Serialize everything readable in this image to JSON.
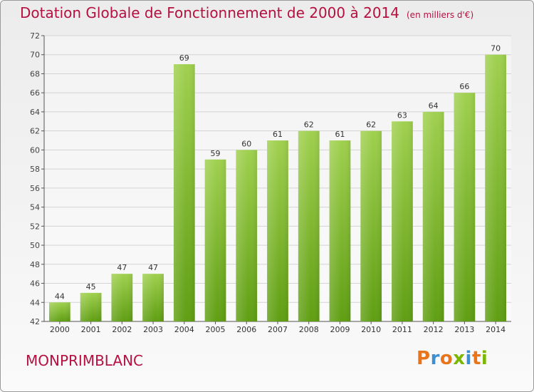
{
  "chart_data": {
    "type": "bar",
    "title": "Dotation Globale de Fonctionnement de 2000 à 2014",
    "subtitle": "(en milliers d'€)",
    "categories": [
      "2000",
      "2001",
      "2002",
      "2003",
      "2004",
      "2005",
      "2006",
      "2007",
      "2008",
      "2009",
      "2010",
      "2011",
      "2012",
      "2013",
      "2014"
    ],
    "values": [
      44,
      45,
      47,
      47,
      69,
      59,
      60,
      61,
      62,
      61,
      62,
      63,
      64,
      66,
      70
    ],
    "ylim": [
      42,
      72
    ],
    "yticks": [
      42,
      44,
      46,
      48,
      50,
      52,
      54,
      56,
      58,
      60,
      62,
      64,
      66,
      68,
      70,
      72
    ],
    "grid": true,
    "bar_color_top": "#9fd04e",
    "bar_color_bottom": "#5f9e12"
  },
  "footer": {
    "commune": "MONPRIMBLANC",
    "brand": "Proxiti"
  },
  "colors": {
    "title": "#b5103f",
    "brand_letters": [
      "#e8741c",
      "#3e8fd0",
      "#e8741c",
      "#7ab800",
      "#3e8fd0",
      "#e8741c",
      "#7ab800"
    ]
  }
}
